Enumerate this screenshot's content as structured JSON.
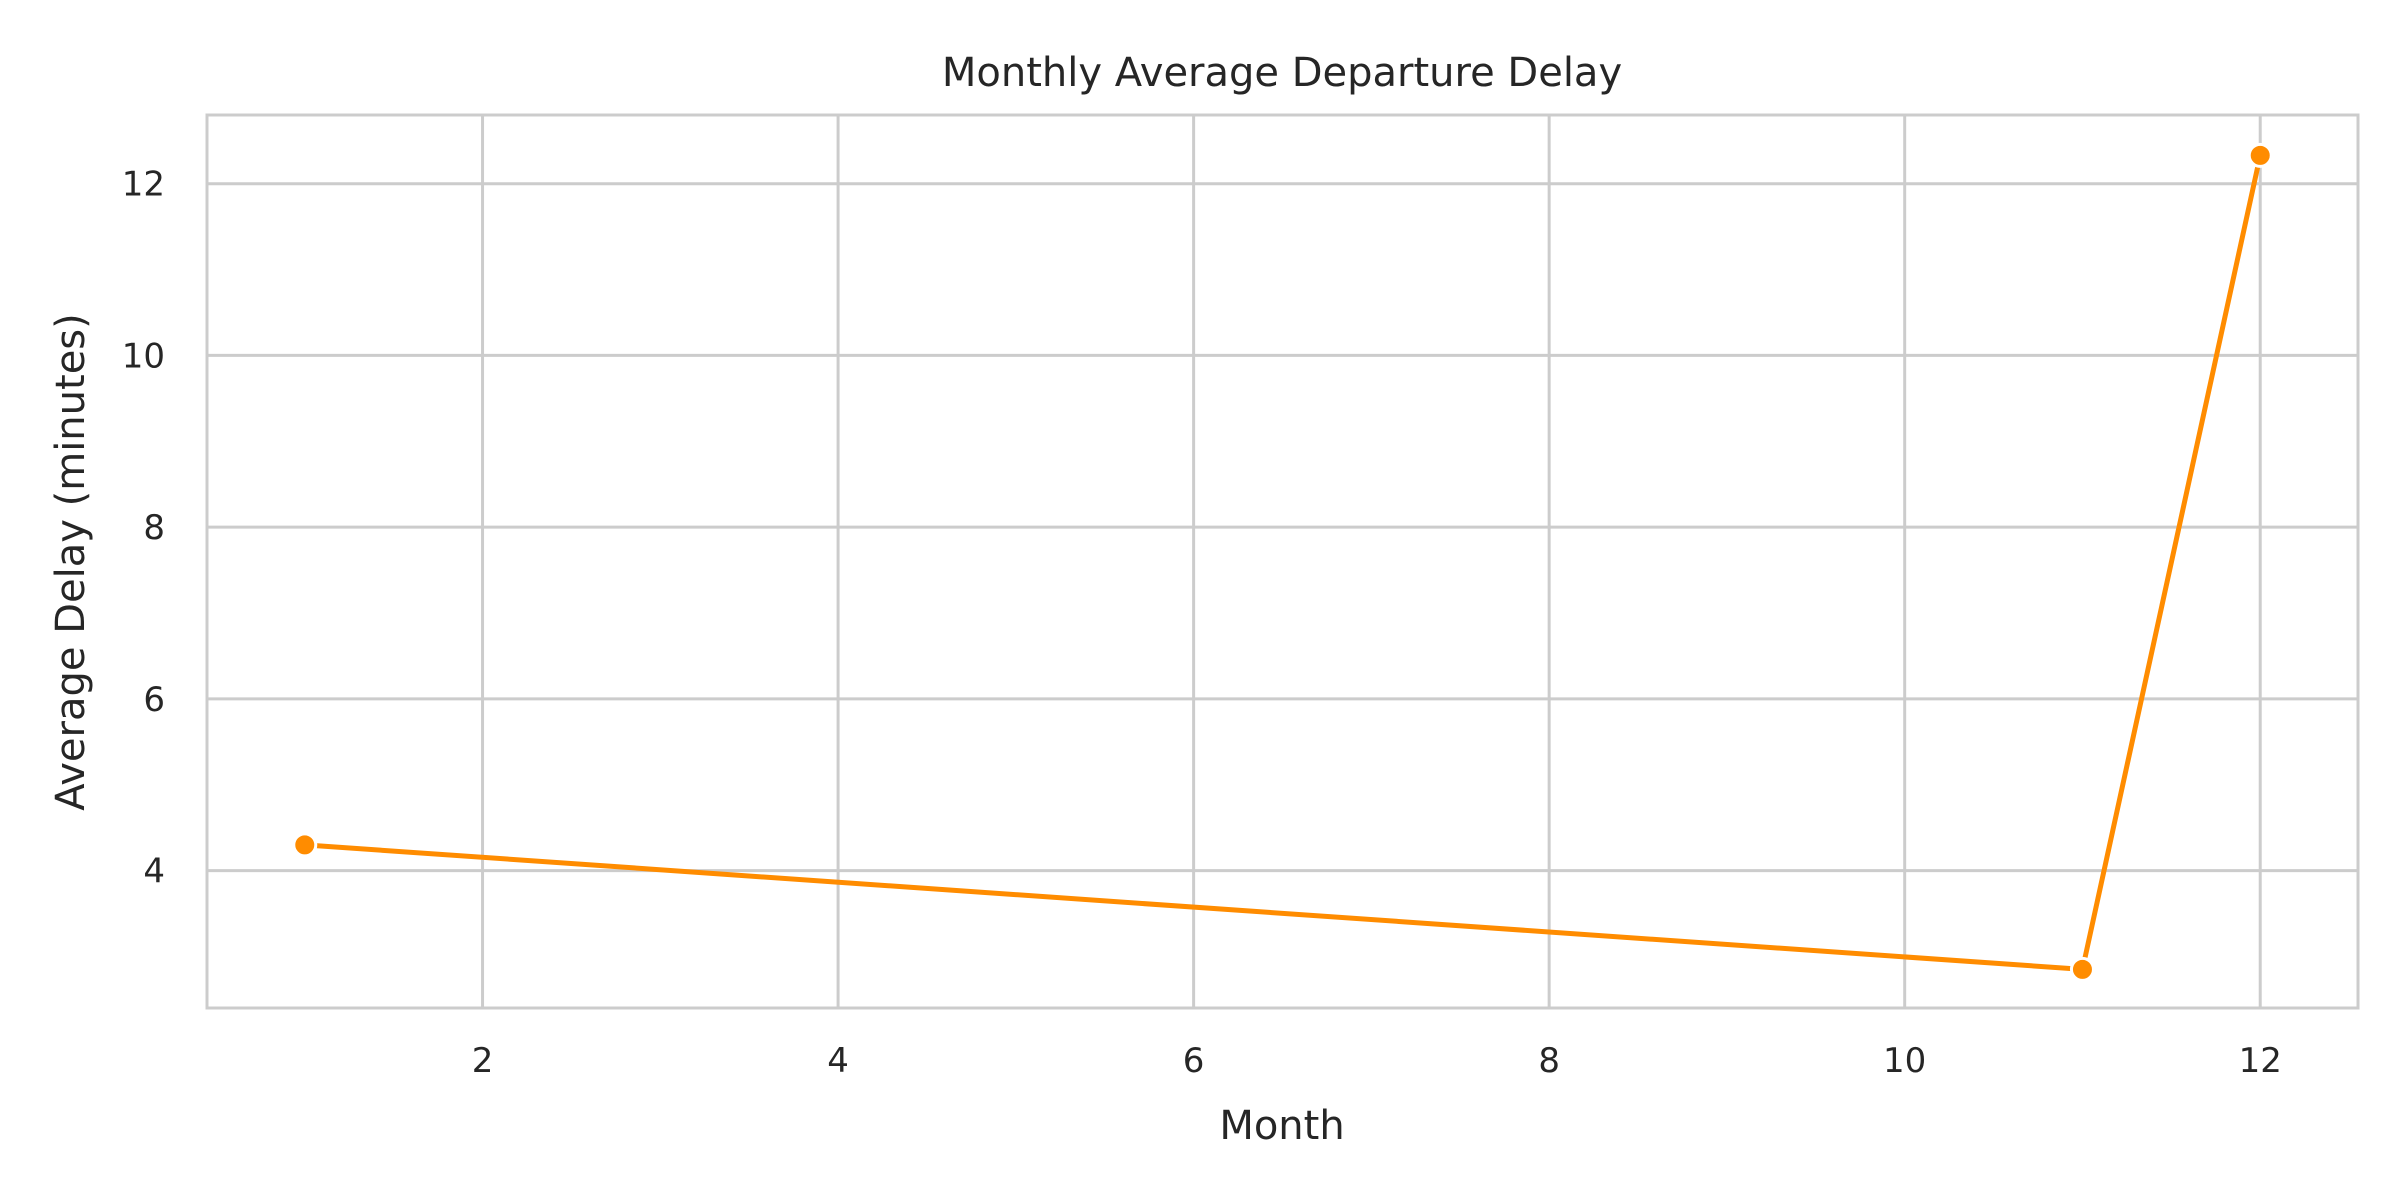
{
  "chart_data": {
    "type": "line",
    "title": "Monthly Average Departure Delay",
    "xlabel": "Month",
    "ylabel": "Average Delay (minutes)",
    "xlim": [
      0.45,
      12.55
    ],
    "ylim": [
      2.4,
      12.8
    ],
    "xticks": [
      2,
      4,
      6,
      8,
      10,
      12
    ],
    "yticks": [
      4,
      6,
      8,
      10,
      12
    ],
    "grid": true,
    "legend": "none",
    "series": [
      {
        "x": [
          1,
          11,
          12
        ],
        "values": [
          4.3,
          2.85,
          12.33
        ],
        "color": "#ff8c00",
        "marker": "circle"
      }
    ],
    "colors": {
      "grid": "#cccccc",
      "frame": "#cccccc",
      "text": "#262626",
      "background": "#ffffff"
    }
  }
}
